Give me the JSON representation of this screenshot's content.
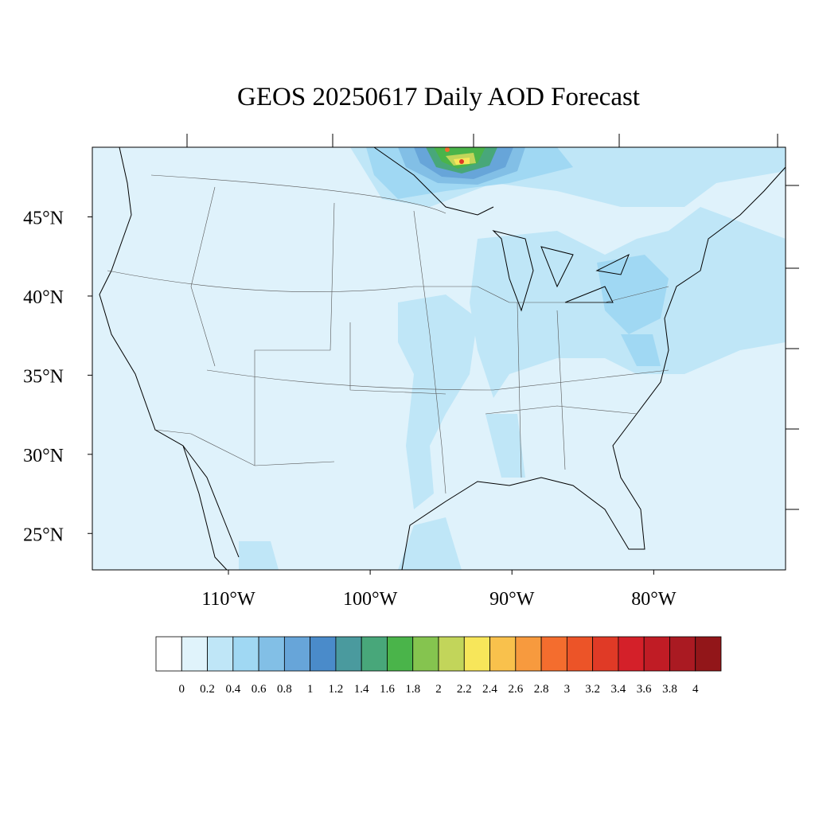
{
  "chart_data": {
    "type": "map",
    "title": "GEOS 20250617 Daily AOD Forecast",
    "xlim": [
      -119.6,
      -70.7
    ],
    "ylim": [
      22.7,
      49.4
    ],
    "yticks": [
      {
        "value": 45,
        "label": "45°N"
      },
      {
        "value": 40,
        "label": "40°N"
      },
      {
        "value": 35,
        "label": "35°N"
      },
      {
        "value": 30,
        "label": "30°N"
      },
      {
        "value": 25,
        "label": "25°N"
      }
    ],
    "xticks": [
      {
        "value": -110,
        "label": "110°W"
      },
      {
        "value": -100,
        "label": "100°W"
      },
      {
        "value": -90,
        "label": "90°W"
      },
      {
        "value": -80,
        "label": "80°W"
      }
    ],
    "colorbar": {
      "levels": [
        0,
        0.2,
        0.4,
        0.6,
        0.8,
        1,
        1.2,
        1.4,
        1.6,
        1.8,
        2,
        2.2,
        2.4,
        2.6,
        2.8,
        3,
        3.2,
        3.4,
        3.6,
        3.8,
        4
      ],
      "colors": [
        "#ffffff",
        "#e0f3fb",
        "#bfe6f7",
        "#a0d8f3",
        "#82bfe6",
        "#67a5d9",
        "#4a8bca",
        "#4a9a9e",
        "#48a77a",
        "#4ab44a",
        "#85c44f",
        "#c2d55a",
        "#f7e65a",
        "#f9c14c",
        "#f79a3e",
        "#f46d2e",
        "#ec5428",
        "#e03a26",
        "#d42029",
        "#c01c25",
        "#aa1a22",
        "#921619"
      ]
    }
  }
}
